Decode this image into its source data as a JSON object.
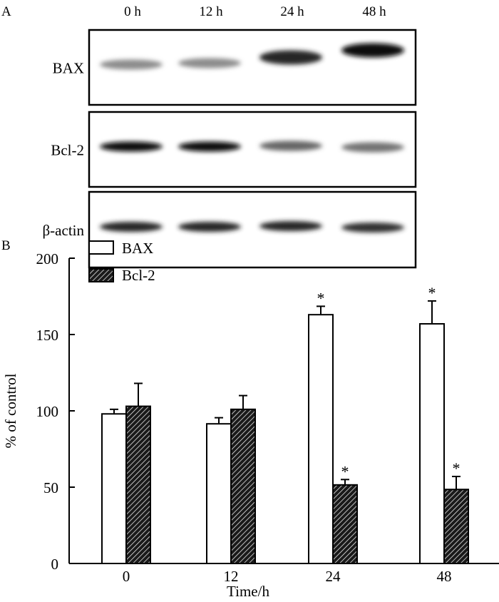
{
  "panel_a": {
    "label": "A",
    "lanes": [
      "0 h",
      "12 h",
      "24 h",
      "48 h"
    ],
    "blots": [
      {
        "name": "BAX",
        "band_intensity": [
          0.45,
          0.45,
          0.85,
          0.95
        ]
      },
      {
        "name": "Bcl-2",
        "band_intensity": [
          0.95,
          0.95,
          0.6,
          0.55
        ]
      },
      {
        "name": "β-actin",
        "band_intensity": [
          0.85,
          0.85,
          0.85,
          0.8
        ]
      }
    ]
  },
  "chart_data": {
    "panel_label": "B",
    "type": "bar",
    "title": "",
    "xlabel": "Time/h",
    "ylabel": "% of control",
    "categories": [
      "0",
      "12",
      "24",
      "48"
    ],
    "ylim": [
      0,
      200
    ],
    "yticks": [
      "0",
      "50",
      "100",
      "150",
      "200"
    ],
    "grid": false,
    "legend_position": "top-left",
    "series": [
      {
        "name": "BAX",
        "fill": "open",
        "values": [
          98,
          91.5,
          163,
          157
        ],
        "errors": [
          3,
          4,
          5.5,
          15
        ],
        "significant": [
          false,
          false,
          true,
          true
        ]
      },
      {
        "name": "Bcl-2",
        "fill": "hatched",
        "values": [
          103,
          101,
          51.5,
          48.5
        ],
        "errors": [
          15,
          9,
          3.5,
          8.5
        ],
        "significant": [
          false,
          false,
          true,
          true
        ]
      }
    ],
    "significance_marker": "*"
  }
}
